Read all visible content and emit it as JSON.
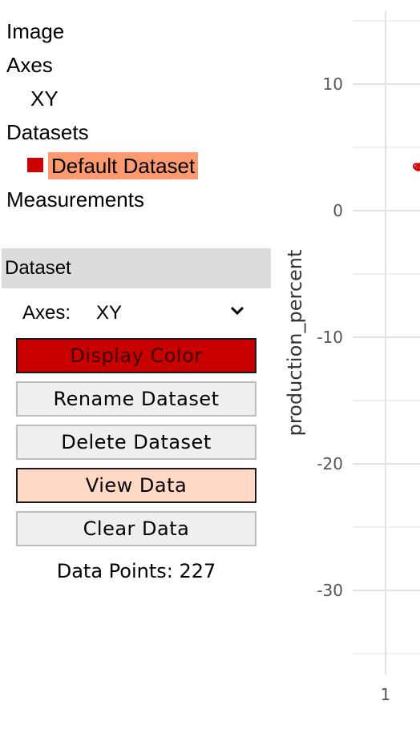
{
  "tree": {
    "image": "Image",
    "axes": "Axes",
    "axes_child": "XY",
    "datasets": "Datasets",
    "dataset_item": "Default Dataset",
    "measurements": "Measurements"
  },
  "colors": {
    "dataset_swatch": "#cc0000",
    "selected_bg": "#ff9a70",
    "display_color_btn": "#c80000",
    "view_data_btn": "#ffd9c6",
    "panel_header": "#dcdcdc",
    "data_point": "#cc0000"
  },
  "panel": {
    "header": "Dataset",
    "axes_label": "Axes:",
    "axes_value": "XY",
    "buttons": {
      "display_color": "Display Color",
      "rename": "Rename Dataset",
      "delete": "Delete Dataset",
      "view_data": "View Data",
      "clear_data": "Clear Data"
    },
    "data_points_label": "Data Points: 227"
  },
  "chart_data": {
    "type": "scatter",
    "ylabel": "production_percent",
    "xlabel": "",
    "y_ticks": [
      10,
      0,
      -10,
      -20,
      -30
    ],
    "x_ticks": [
      1
    ],
    "ylim": [
      -37,
      16
    ],
    "grid": true,
    "series": [
      {
        "x": [
          1.35,
          1.37,
          1.39
        ],
        "y": [
          3.5,
          3.4,
          3.5
        ]
      }
    ]
  }
}
